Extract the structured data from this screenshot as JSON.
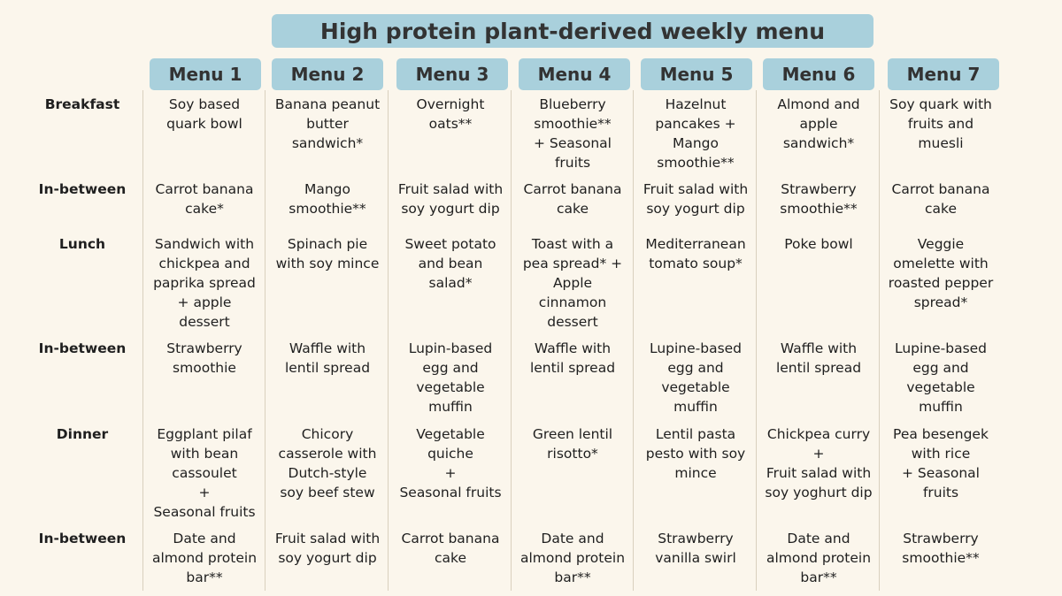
{
  "title": "High protein plant-derived weekly menu",
  "menus": [
    "Menu 1",
    "Menu 2",
    "Menu 3",
    "Menu 4",
    "Menu 5",
    "Menu 6",
    "Menu 7"
  ],
  "rows": [
    {
      "label": "Breakfast",
      "cells": [
        "Soy based\nquark bowl",
        "Banana peanut\nbutter\nsandwich*",
        "Overnight\noats**",
        "Blueberry\nsmoothie**\n+ Seasonal\nfruits",
        "Hazelnut\npancakes +\nMango\nsmoothie**",
        "Almond and\napple\nsandwich*",
        "Soy quark with\nfruits and\nmuesli"
      ]
    },
    {
      "label": "In-between",
      "cells": [
        "Carrot banana\ncake*",
        "Mango\nsmoothie**",
        "Fruit salad with\nsoy yogurt dip",
        "Carrot banana\ncake",
        "Fruit salad with\nsoy yogurt dip",
        "Strawberry\nsmoothie**",
        "Carrot banana\ncake"
      ]
    },
    {
      "label": "Lunch",
      "cells": [
        "Sandwich with\nchickpea and\npaprika spread\n+ apple\ndessert",
        "Spinach pie\nwith soy mince",
        "Sweet potato\nand bean\nsalad*",
        "Toast with a\npea spread* +\nApple\ncinnamon\ndessert",
        "Mediterranean\ntomato soup*",
        "Poke bowl",
        "Veggie\nomelette with\nroasted pepper\nspread*"
      ]
    },
    {
      "label": "In-between",
      "cells": [
        "Strawberry\nsmoothie",
        "Waffle with\nlentil spread",
        "Lupin-based\negg and\nvegetable\nmuffin",
        "Waffle with\nlentil spread",
        "Lupine-based\negg and\nvegetable\nmuffin",
        "Waffle with\nlentil spread",
        "Lupine-based\negg and\nvegetable\nmuffin"
      ]
    },
    {
      "label": "Dinner",
      "cells": [
        "Eggplant pilaf\nwith bean\ncassoulet\n+\nSeasonal fruits",
        "Chicory\ncasserole with\nDutch-style\nsoy beef stew",
        "Vegetable\nquiche\n+\nSeasonal fruits",
        "Green lentil\nrisotto*",
        "Lentil pasta\npesto with soy\nmince",
        "Chickpea curry\n+\nFruit salad with\nsoy yoghurt dip",
        "Pea besengek\nwith rice\n+ Seasonal\nfruits"
      ]
    },
    {
      "label": "In-between",
      "cells": [
        "Date and\nalmond protein\nbar**",
        "Fruit salad with\nsoy yogurt dip",
        "Carrot banana\ncake",
        "Date and\nalmond protein\nbar**",
        "Strawberry\nvanilla swirl",
        "Date and\nalmond protein\nbar**",
        "Strawberry\nsmoothie**"
      ]
    }
  ],
  "colors": {
    "background": "#fbf6ec",
    "header_fill": "#a9d0dc",
    "divider": "#d9d0be"
  }
}
